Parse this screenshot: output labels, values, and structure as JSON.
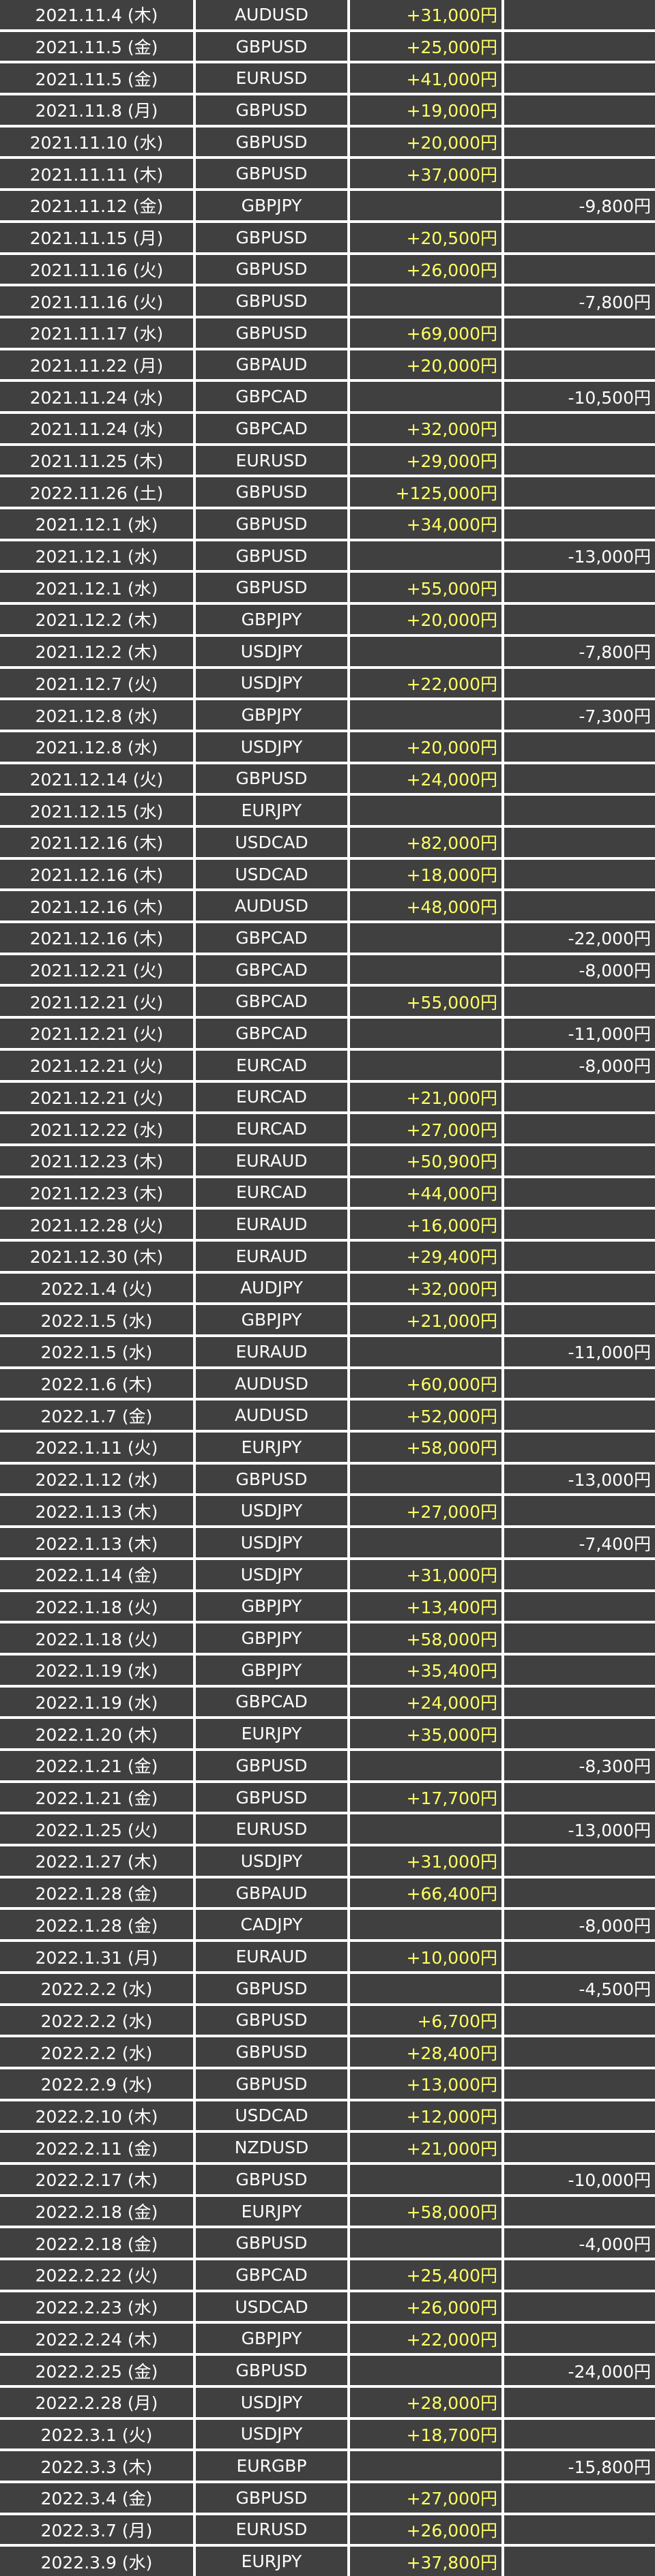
{
  "table": {
    "rows": [
      {
        "date": "2021.11.4 (木)",
        "pair": "AUDUSD",
        "gain": "+31,000円"
      },
      {
        "date": "2021.11.5 (金)",
        "pair": "GBPUSD",
        "gain": "+25,000円"
      },
      {
        "date": "2021.11.5 (金)",
        "pair": "EURUSD",
        "gain": "+41,000円"
      },
      {
        "date": "2021.11.8 (月)",
        "pair": "GBPUSD",
        "gain": "+19,000円"
      },
      {
        "date": "2021.11.10 (水)",
        "pair": "GBPUSD",
        "gain": "+20,000円"
      },
      {
        "date": "2021.11.11 (木)",
        "pair": "GBPUSD",
        "gain": "+37,000円"
      },
      {
        "date": "2021.11.12 (金)",
        "pair": "GBPJPY",
        "loss": "-9,800円"
      },
      {
        "date": "2021.11.15 (月)",
        "pair": "GBPUSD",
        "gain": "+20,500円"
      },
      {
        "date": "2021.11.16 (火)",
        "pair": "GBPUSD",
        "gain": "+26,000円"
      },
      {
        "date": "2021.11.16 (火)",
        "pair": "GBPUSD",
        "loss": "-7,800円"
      },
      {
        "date": "2021.11.17 (水)",
        "pair": "GBPUSD",
        "gain": "+69,000円"
      },
      {
        "date": "2021.11.22 (月)",
        "pair": "GBPAUD",
        "gain": "+20,000円"
      },
      {
        "date": "2021.11.24 (水)",
        "pair": "GBPCAD",
        "loss": "-10,500円"
      },
      {
        "date": "2021.11.24 (水)",
        "pair": "GBPCAD",
        "gain": "+32,000円"
      },
      {
        "date": "2021.11.25 (木)",
        "pair": "EURUSD",
        "gain": "+29,000円"
      },
      {
        "date": "2022.11.26 (土)",
        "pair": "GBPUSD",
        "gain": "+125,000円"
      },
      {
        "date": "2021.12.1 (水)",
        "pair": "GBPUSD",
        "gain": "+34,000円"
      },
      {
        "date": "2021.12.1 (水)",
        "pair": "GBPUSD",
        "loss": "-13,000円"
      },
      {
        "date": "2021.12.1 (水)",
        "pair": "GBPUSD",
        "gain": "+55,000円"
      },
      {
        "date": "2021.12.2 (木)",
        "pair": "GBPJPY",
        "gain": "+20,000円"
      },
      {
        "date": "2021.12.2 (木)",
        "pair": "USDJPY",
        "loss": "-7,800円"
      },
      {
        "date": "2021.12.7 (火)",
        "pair": "USDJPY",
        "gain": "+22,000円"
      },
      {
        "date": "2021.12.8 (水)",
        "pair": "GBPJPY",
        "loss": "-7,300円"
      },
      {
        "date": "2021.12.8 (水)",
        "pair": "USDJPY",
        "gain": "+20,000円"
      },
      {
        "date": "2021.12.14 (火)",
        "pair": "GBPUSD",
        "gain": "+24,000円"
      },
      {
        "date": "2021.12.15 (水)",
        "pair": "EURJPY"
      },
      {
        "date": "2021.12.16 (木)",
        "pair": "USDCAD",
        "gain": "+82,000円"
      },
      {
        "date": "2021.12.16 (木)",
        "pair": "USDCAD",
        "gain": "+18,000円"
      },
      {
        "date": "2021.12.16 (木)",
        "pair": "AUDUSD",
        "gain": "+48,000円"
      },
      {
        "date": "2021.12.16 (木)",
        "pair": "GBPCAD",
        "loss": "-22,000円"
      },
      {
        "date": "2021.12.21 (火)",
        "pair": "GBPCAD",
        "loss": "-8,000円"
      },
      {
        "date": "2021.12.21 (火)",
        "pair": "GBPCAD",
        "gain": "+55,000円"
      },
      {
        "date": "2021.12.21 (火)",
        "pair": "GBPCAD",
        "loss": "-11,000円"
      },
      {
        "date": "2021.12.21 (火)",
        "pair": "EURCAD",
        "loss": "-8,000円"
      },
      {
        "date": "2021.12.21 (火)",
        "pair": "EURCAD",
        "gain": "+21,000円"
      },
      {
        "date": "2021.12.22 (水)",
        "pair": "EURCAD",
        "gain": "+27,000円"
      },
      {
        "date": "2021.12.23 (木)",
        "pair": "EURAUD",
        "gain": "+50,900円"
      },
      {
        "date": "2021.12.23 (木)",
        "pair": "EURCAD",
        "gain": "+44,000円"
      },
      {
        "date": "2021.12.28 (火)",
        "pair": "EURAUD",
        "gain": "+16,000円"
      },
      {
        "date": "2021.12.30 (木)",
        "pair": "EURAUD",
        "gain": "+29,400円"
      },
      {
        "date": "2022.1.4 (火)",
        "pair": "AUDJPY",
        "gain": "+32,000円"
      },
      {
        "date": "2022.1.5 (水)",
        "pair": "GBPJPY",
        "gain": "+21,000円"
      },
      {
        "date": "2022.1.5 (水)",
        "pair": "EURAUD",
        "loss": "-11,000円"
      },
      {
        "date": "2022.1.6 (木)",
        "pair": "AUDUSD",
        "gain": "+60,000円"
      },
      {
        "date": "2022.1.7 (金)",
        "pair": "AUDUSD",
        "gain": "+52,000円"
      },
      {
        "date": "2022.1.11 (火)",
        "pair": "EURJPY",
        "gain": "+58,000円"
      },
      {
        "date": "2022.1.12 (水)",
        "pair": "GBPUSD",
        "loss": "-13,000円"
      },
      {
        "date": "2022.1.13 (木)",
        "pair": "USDJPY",
        "gain": "+27,000円"
      },
      {
        "date": "2022.1.13 (木)",
        "pair": "USDJPY",
        "loss": "-7,400円"
      },
      {
        "date": "2022.1.14 (金)",
        "pair": "USDJPY",
        "gain": "+31,000円"
      },
      {
        "date": "2022.1.18 (火)",
        "pair": "GBPJPY",
        "gain": "+13,400円"
      },
      {
        "date": "2022.1.18 (火)",
        "pair": "GBPJPY",
        "gain": "+58,000円"
      },
      {
        "date": "2022.1.19 (水)",
        "pair": "GBPJPY",
        "gain": "+35,400円"
      },
      {
        "date": "2022.1.19 (水)",
        "pair": "GBPCAD",
        "gain": "+24,000円"
      },
      {
        "date": "2022.1.20 (木)",
        "pair": "EURJPY",
        "gain": "+35,000円"
      },
      {
        "date": "2022.1.21 (金)",
        "pair": "GBPUSD",
        "loss": "-8,300円"
      },
      {
        "date": "2022.1.21 (金)",
        "pair": "GBPUSD",
        "gain": "+17,700円"
      },
      {
        "date": "2022.1.25 (火)",
        "pair": "EURUSD",
        "loss": "-13,000円"
      },
      {
        "date": "2022.1.27 (木)",
        "pair": "USDJPY",
        "gain": "+31,000円"
      },
      {
        "date": "2022.1.28 (金)",
        "pair": "GBPAUD",
        "gain": "+66,400円"
      },
      {
        "date": "2022.1.28 (金)",
        "pair": "CADJPY",
        "loss": "-8,000円"
      },
      {
        "date": "2022.1.31 (月)",
        "pair": "EURAUD",
        "gain": "+10,000円"
      },
      {
        "date": "2022.2.2 (水)",
        "pair": "GBPUSD",
        "loss": "-4,500円"
      },
      {
        "date": "2022.2.2 (水)",
        "pair": "GBPUSD",
        "gain": "+6,700円"
      },
      {
        "date": "2022.2.2 (水)",
        "pair": "GBPUSD",
        "gain": "+28,400円"
      },
      {
        "date": "2022.2.9 (水)",
        "pair": "GBPUSD",
        "gain": "+13,000円"
      },
      {
        "date": "2022.2.10 (木)",
        "pair": "USDCAD",
        "gain": "+12,000円"
      },
      {
        "date": "2022.2.11 (金)",
        "pair": "NZDUSD",
        "gain": "+21,000円"
      },
      {
        "date": "2022.2.17 (木)",
        "pair": "GBPUSD",
        "loss": "-10,000円"
      },
      {
        "date": "2022.2.18 (金)",
        "pair": "EURJPY",
        "gain": "+58,000円"
      },
      {
        "date": "2022.2.18 (金)",
        "pair": "GBPUSD",
        "loss": "-4,000円"
      },
      {
        "date": "2022.2.22 (火)",
        "pair": "GBPCAD",
        "gain": "+25,400円"
      },
      {
        "date": "2022.2.23 (水)",
        "pair": "USDCAD",
        "gain": "+26,000円"
      },
      {
        "date": "2022.2.24 (木)",
        "pair": "GBPJPY",
        "gain": "+22,000円"
      },
      {
        "date": "2022.2.25 (金)",
        "pair": "GBPUSD",
        "loss": "-24,000円"
      },
      {
        "date": "2022.2.28 (月)",
        "pair": "USDJPY",
        "gain": "+28,000円"
      },
      {
        "date": "2022.3.1 (火)",
        "pair": "USDJPY",
        "gain": "+18,700円"
      },
      {
        "date": "2022.3.3 (木)",
        "pair": "EURGBP",
        "loss": "-15,800円"
      },
      {
        "date": "2022.3.4 (金)",
        "pair": "GBPUSD",
        "gain": "+27,000円"
      },
      {
        "date": "2022.3.7 (月)",
        "pair": "EURUSD",
        "gain": "+26,000円"
      },
      {
        "date": "2022.3.9 (水)",
        "pair": "EURJPY",
        "gain": "+37,800円"
      }
    ]
  }
}
